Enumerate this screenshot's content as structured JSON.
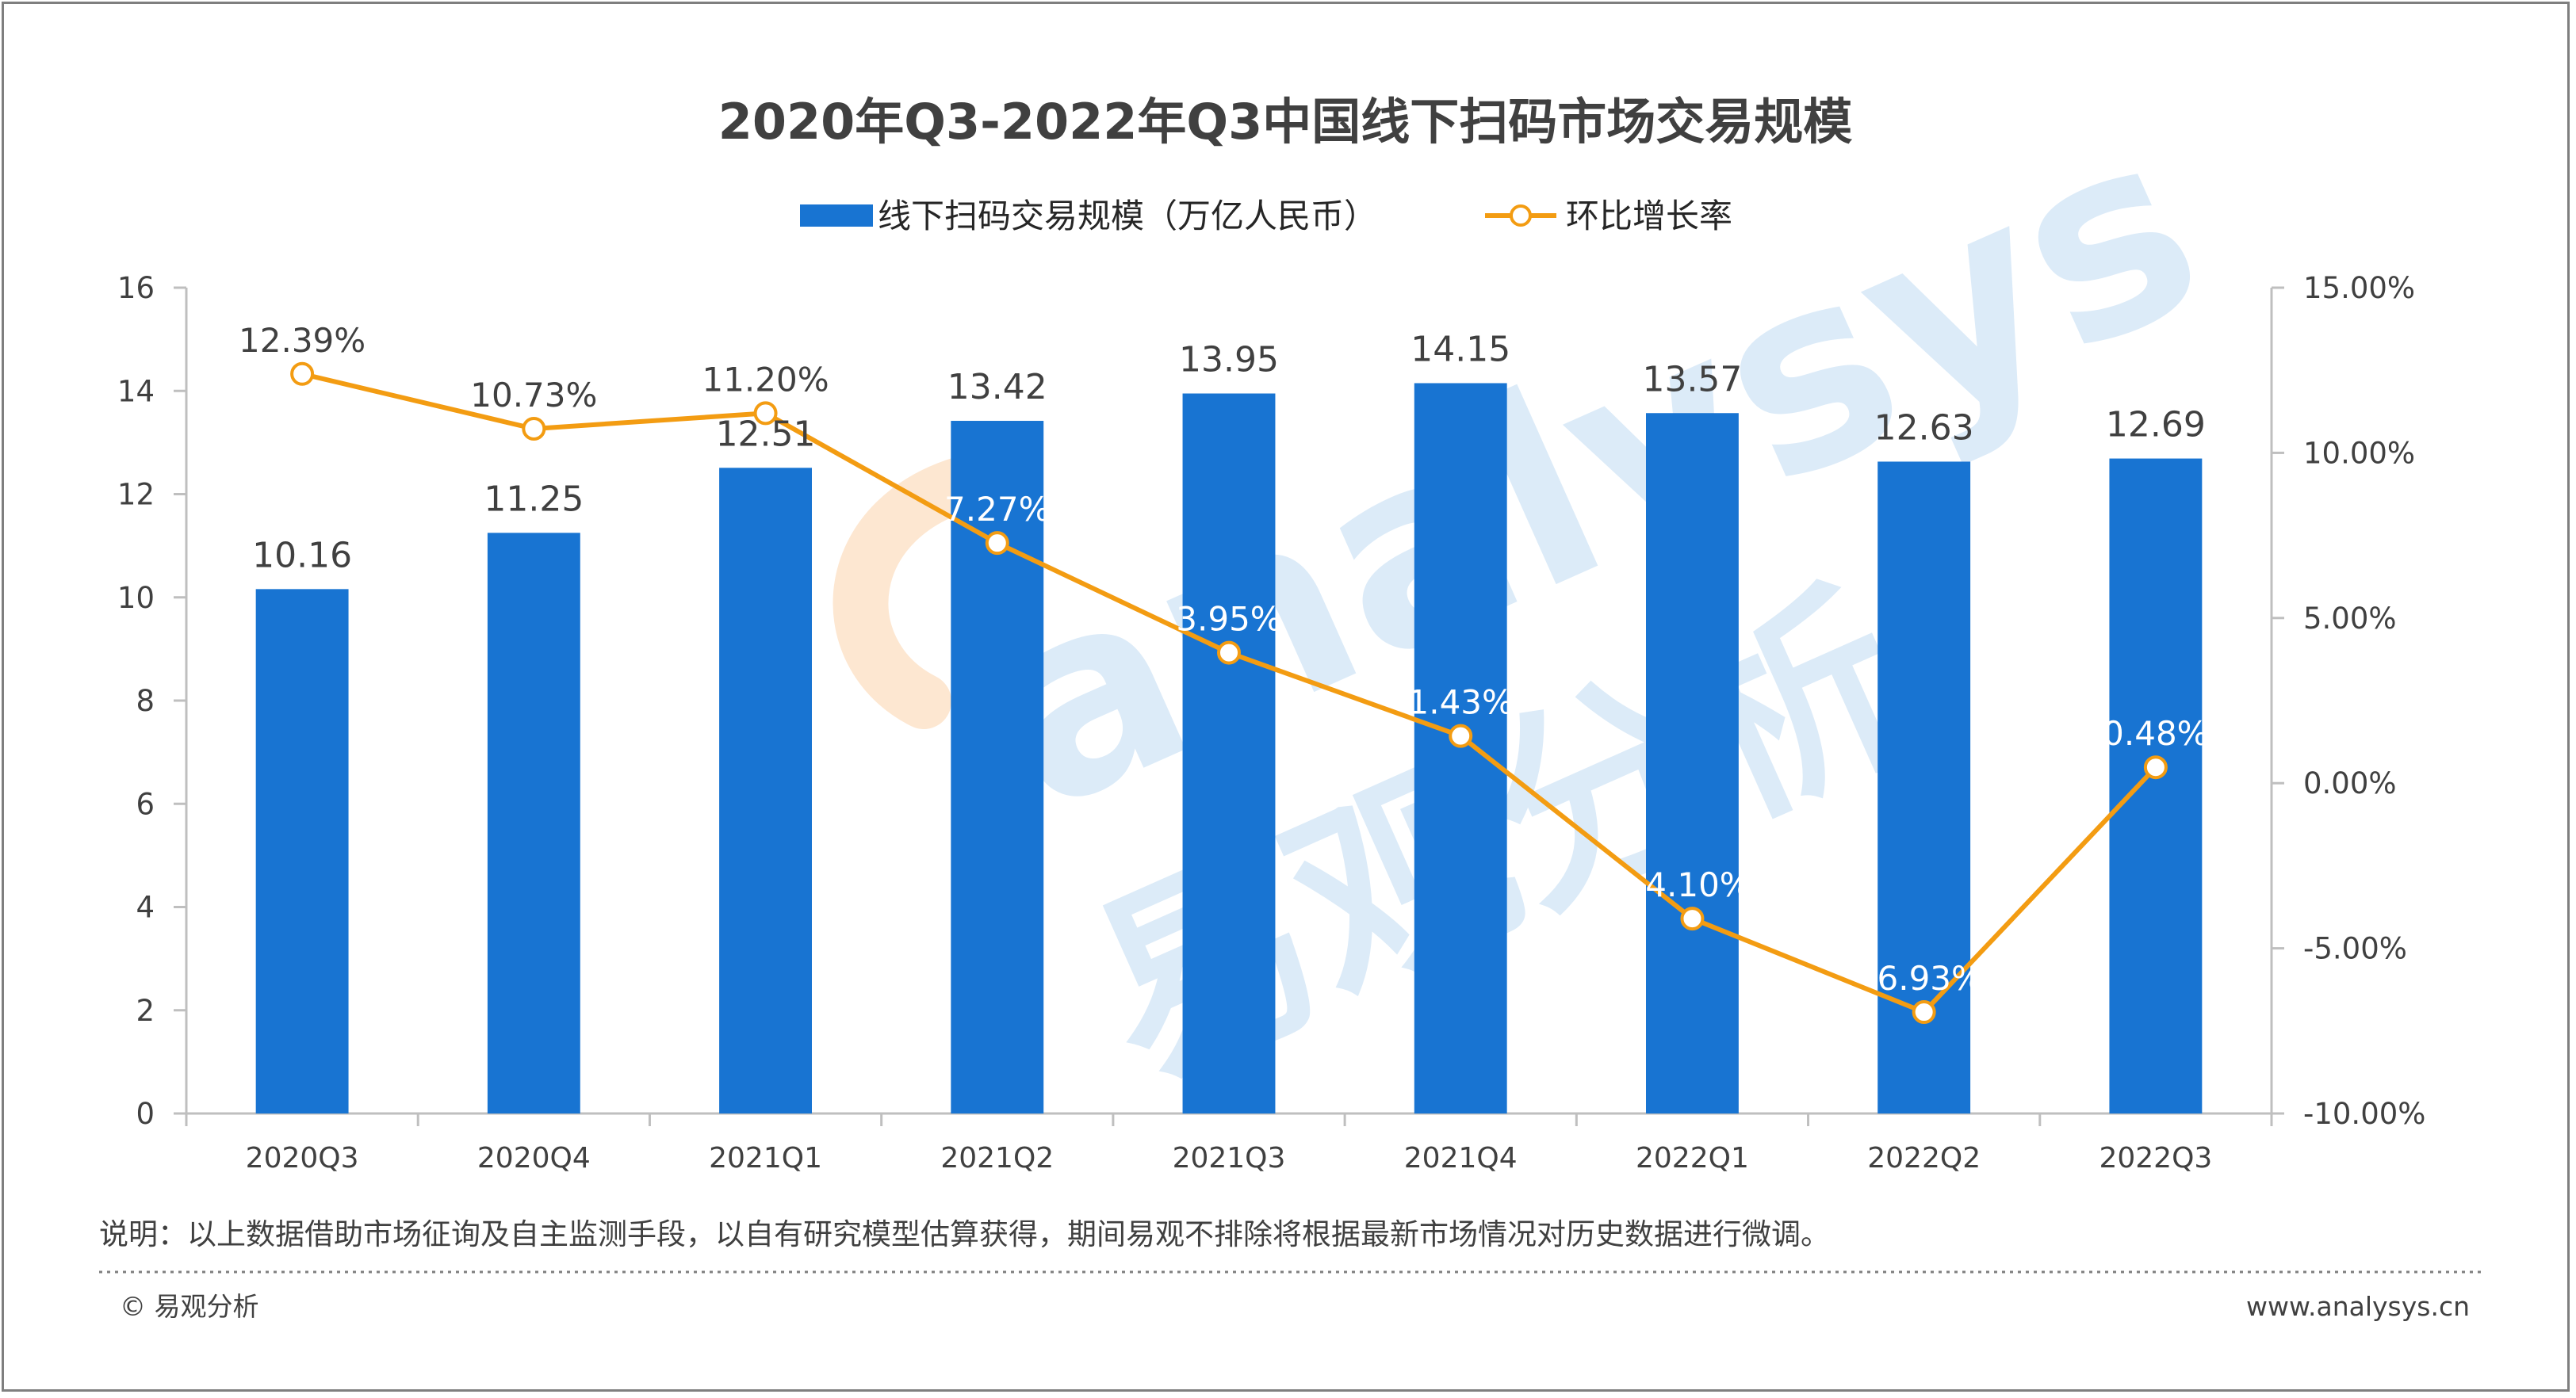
{
  "title": "2020年Q3-2022年Q3中国线下扫码市场交易规模",
  "legend": {
    "bar_label": "线下扫码交易规模（万亿人民币）",
    "line_label": "环比增长率"
  },
  "note": "说明：以上数据借助市场征询及自主监测手段，以自有研究模型估算获得，期间易观不排除将根据最新市场情况对历史数据进行微调。",
  "footer": {
    "copyright": "© 易观分析",
    "website": "www.analysys.cn"
  },
  "watermark": {
    "latin": "analysys",
    "chinese": "易观分析"
  },
  "colors": {
    "bar": "#1874d2",
    "line": "#f39c12",
    "marker_fill": "#ffffff",
    "watermark_blue": "#dcebf8",
    "watermark_orange": "#fde7d1"
  },
  "chart_data": {
    "type": "bar",
    "categories": [
      "2020Q3",
      "2020Q4",
      "2021Q1",
      "2021Q2",
      "2021Q3",
      "2021Q4",
      "2022Q1",
      "2022Q2",
      "2022Q3"
    ],
    "series": [
      {
        "name": "线下扫码交易规模（万亿人民币）",
        "type": "bar",
        "axis": "left",
        "values": [
          10.16,
          11.25,
          12.51,
          13.42,
          13.95,
          14.15,
          13.57,
          12.63,
          12.69
        ],
        "labels": [
          "10.16",
          "11.25",
          "12.51",
          "13.42",
          "13.95",
          "14.15",
          "13.57",
          "12.63",
          "12.69"
        ]
      },
      {
        "name": "环比增长率",
        "type": "line",
        "axis": "right",
        "values": [
          12.39,
          10.73,
          11.2,
          7.27,
          3.95,
          1.43,
          -4.1,
          -6.93,
          0.48
        ],
        "labels": [
          "12.39%",
          "10.73%",
          "11.20%",
          "7.27%",
          "3.95%",
          "1.43%",
          "-4.10%",
          "-6.93%",
          "0.48%"
        ]
      }
    ],
    "y_left": {
      "ylim": [
        0,
        16
      ],
      "ticks": [
        0,
        2,
        4,
        6,
        8,
        10,
        12,
        14,
        16
      ],
      "tick_labels": [
        "0",
        "2",
        "4",
        "6",
        "8",
        "10",
        "12",
        "14",
        "16"
      ]
    },
    "y_right": {
      "ylim": [
        -10,
        15
      ],
      "ticks": [
        -10,
        -5,
        0,
        5,
        10,
        15
      ],
      "tick_labels": [
        "-10.00%",
        "-5.00%",
        "0.00%",
        "5.00%",
        "10.00%",
        "15.00%"
      ]
    },
    "grid": false,
    "legend_position": "top-center"
  }
}
